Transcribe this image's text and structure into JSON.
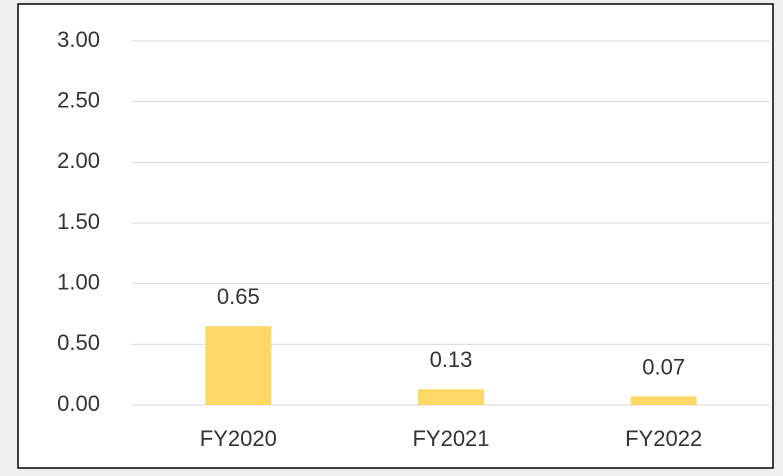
{
  "chart_data": {
    "type": "bar",
    "categories": [
      "FY2020",
      "FY2021",
      "FY2022"
    ],
    "values": [
      0.65,
      0.13,
      0.07
    ],
    "color": "#ffd966",
    "ylim": [
      0,
      3
    ],
    "yticks": [
      {
        "value": 0,
        "label": "0.00"
      },
      {
        "value": 0.5,
        "label": "0.50"
      },
      {
        "value": 1,
        "label": "1.00"
      },
      {
        "value": 1.5,
        "label": "1.50"
      },
      {
        "value": 2,
        "label": "2.00"
      },
      {
        "value": 2.5,
        "label": "2.50"
      },
      {
        "value": 3,
        "label": "3.00"
      }
    ],
    "grid": true
  }
}
